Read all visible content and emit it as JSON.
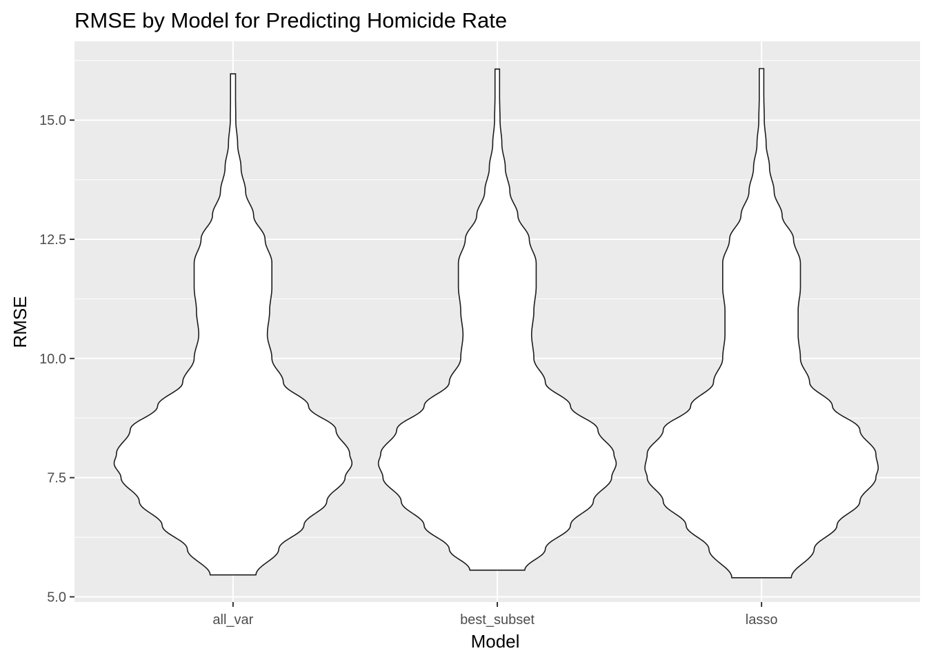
{
  "chart_data": {
    "type": "violin",
    "title": "RMSE by Model for Predicting Homicide Rate",
    "xlabel": "Model",
    "ylabel": "RMSE",
    "ylim": [
      4.9,
      16.55
    ],
    "yticks": [
      5.0,
      7.5,
      10.0,
      12.5,
      15.0
    ],
    "ytick_labels": [
      "5.0",
      "7.5",
      "10.0",
      "12.5",
      "15.0"
    ],
    "categories": [
      "all_var",
      "best_subset",
      "lasso"
    ],
    "grid": true,
    "colors": {
      "panel": "#ebebeb",
      "grid": "#ffffff",
      "fill": "#ffffff",
      "outline": "#1a1a1a"
    },
    "series": [
      {
        "category": "all_var",
        "ymin": 5.46,
        "ymax": 15.97,
        "profile": [
          [
            5.46,
            0.1
          ],
          [
            6.0,
            0.2
          ],
          [
            6.5,
            0.31
          ],
          [
            7.0,
            0.41
          ],
          [
            7.5,
            0.49
          ],
          [
            7.8,
            0.52
          ],
          [
            8.0,
            0.51
          ],
          [
            8.5,
            0.45
          ],
          [
            9.0,
            0.33
          ],
          [
            9.5,
            0.22
          ],
          [
            10.0,
            0.17
          ],
          [
            10.5,
            0.15
          ],
          [
            11.0,
            0.16
          ],
          [
            11.5,
            0.17
          ],
          [
            12.0,
            0.17
          ],
          [
            12.5,
            0.14
          ],
          [
            13.0,
            0.09
          ],
          [
            13.5,
            0.055
          ],
          [
            14.0,
            0.035
          ],
          [
            14.5,
            0.02
          ],
          [
            15.0,
            0.012
          ],
          [
            15.5,
            0.011
          ],
          [
            15.97,
            0.011
          ]
        ]
      },
      {
        "category": "best_subset",
        "ymin": 5.56,
        "ymax": 16.07,
        "profile": [
          [
            5.56,
            0.12
          ],
          [
            6.0,
            0.21
          ],
          [
            6.5,
            0.32
          ],
          [
            7.0,
            0.42
          ],
          [
            7.5,
            0.5
          ],
          [
            7.8,
            0.52
          ],
          [
            8.0,
            0.51
          ],
          [
            8.5,
            0.44
          ],
          [
            9.0,
            0.32
          ],
          [
            9.5,
            0.21
          ],
          [
            10.0,
            0.16
          ],
          [
            10.5,
            0.15
          ],
          [
            11.0,
            0.16
          ],
          [
            11.5,
            0.17
          ],
          [
            12.0,
            0.17
          ],
          [
            12.5,
            0.14
          ],
          [
            13.0,
            0.09
          ],
          [
            13.5,
            0.055
          ],
          [
            14.0,
            0.035
          ],
          [
            14.5,
            0.02
          ],
          [
            15.0,
            0.012
          ],
          [
            15.5,
            0.01
          ],
          [
            16.07,
            0.01
          ]
        ]
      },
      {
        "category": "lasso",
        "ymin": 5.4,
        "ymax": 16.08,
        "profile": [
          [
            5.4,
            0.13
          ],
          [
            6.0,
            0.23
          ],
          [
            6.5,
            0.33
          ],
          [
            7.0,
            0.43
          ],
          [
            7.5,
            0.5
          ],
          [
            7.7,
            0.51
          ],
          [
            8.0,
            0.5
          ],
          [
            8.5,
            0.43
          ],
          [
            9.0,
            0.31
          ],
          [
            9.5,
            0.21
          ],
          [
            10.0,
            0.17
          ],
          [
            10.5,
            0.16
          ],
          [
            11.0,
            0.16
          ],
          [
            11.5,
            0.17
          ],
          [
            12.0,
            0.17
          ],
          [
            12.5,
            0.14
          ],
          [
            13.0,
            0.09
          ],
          [
            13.5,
            0.055
          ],
          [
            14.0,
            0.035
          ],
          [
            14.5,
            0.02
          ],
          [
            15.0,
            0.012
          ],
          [
            15.5,
            0.01
          ],
          [
            16.08,
            0.01
          ]
        ]
      }
    ]
  }
}
